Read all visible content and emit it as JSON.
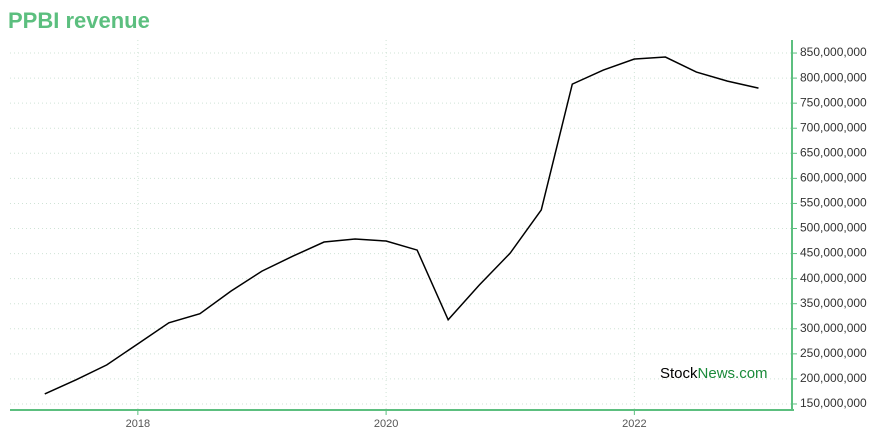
{
  "chart_data": {
    "type": "line",
    "title": "PPBI revenue",
    "x": [
      2017.25,
      2017.5,
      2017.75,
      2018.0,
      2018.25,
      2018.5,
      2018.75,
      2019.0,
      2019.25,
      2019.5,
      2019.75,
      2020.0,
      2020.25,
      2020.5,
      2020.75,
      2021.0,
      2021.25,
      2021.5,
      2021.75,
      2022.0,
      2022.25,
      2022.5,
      2022.75,
      2023.0
    ],
    "series": [
      {
        "color": "#000000",
        "values": [
          170000000,
          198000000,
          228000000,
          270000000,
          312000000,
          330000000,
          375000000,
          415000000,
          445000000,
          473000000,
          479000000,
          475000000,
          457000000,
          318000000,
          387000000,
          451000000,
          537000000,
          788000000,
          816000000,
          838000000,
          842000000,
          812000000,
          794000000,
          780000000
        ]
      }
    ],
    "xlim": [
      2016.97,
      2023.27
    ],
    "xticks": [
      2018,
      2020,
      2022
    ],
    "ylim": [
      138000000,
      876000000
    ],
    "yticks": [
      {
        "value": 150000000,
        "label": "150,000,000"
      },
      {
        "value": 200000000,
        "label": "200,000,000"
      },
      {
        "value": 250000000,
        "label": "250,000,000"
      },
      {
        "value": 300000000,
        "label": "300,000,000"
      },
      {
        "value": 350000000,
        "label": "350,000,000"
      },
      {
        "value": 400000000,
        "label": "400,000,000"
      },
      {
        "value": 450000000,
        "label": "450,000,000"
      },
      {
        "value": 500000000,
        "label": "500,000,000"
      },
      {
        "value": 550000000,
        "label": "550,000,000"
      },
      {
        "value": 600000000,
        "label": "600,000,000"
      },
      {
        "value": 650000000,
        "label": "650,000,000"
      },
      {
        "value": 700000000,
        "label": "700,000,000"
      },
      {
        "value": 750000000,
        "label": "750,000,000"
      },
      {
        "value": 800000000,
        "label": "800,000,000"
      },
      {
        "value": 850000000,
        "label": "850,000,000"
      }
    ],
    "grid": true,
    "watermark": {
      "part1": "Stock",
      "part2": "News.com"
    }
  }
}
